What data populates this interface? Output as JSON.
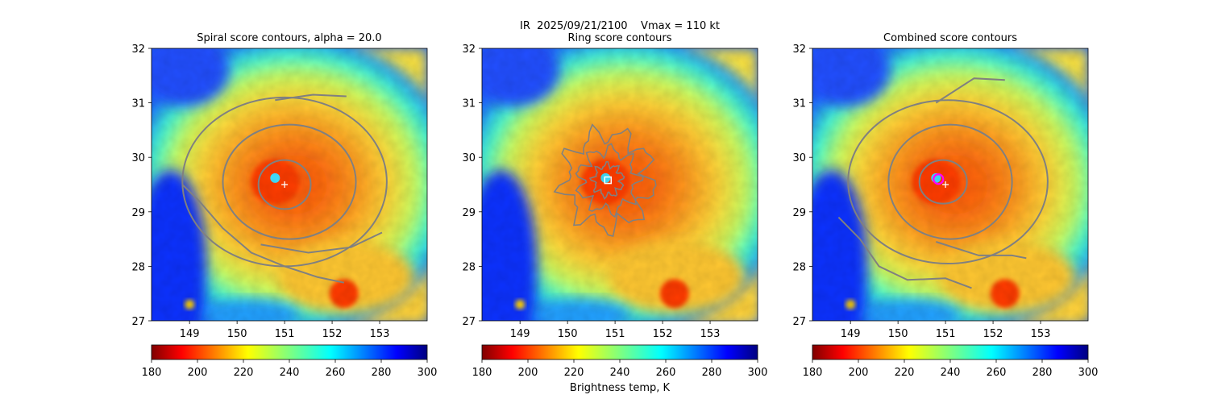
{
  "figure": {
    "suptitle": "IR  2025/09/21/2100    Vmax = 110 kt",
    "colorbar_label": "Brightness temp, K"
  },
  "chart_data": [
    {
      "type": "heatmap",
      "title": "Spiral score contours, alpha = 20.0",
      "xlim": [
        148.2,
        154.0
      ],
      "ylim": [
        27,
        32
      ],
      "x_ticks": [
        "149",
        "150",
        "151",
        "152",
        "153"
      ],
      "y_ticks": [
        "27",
        "28",
        "29",
        "30",
        "31",
        "32"
      ],
      "colorbar": {
        "ticks": [
          "180",
          "200",
          "220",
          "240",
          "260",
          "280",
          "300"
        ],
        "range": [
          180,
          300
        ],
        "colormap": "jet_r"
      },
      "markers": [
        {
          "type": "plus",
          "x": 151.0,
          "y": 29.5,
          "color": "#ffffff"
        }
      ],
      "contours": {
        "color": "#808080",
        "levels": [
          {
            "cx": 151.0,
            "cy": 29.5,
            "rx": 0.55,
            "ry": 0.45
          },
          {
            "cx": 151.1,
            "cy": 29.55,
            "rx": 1.4,
            "ry": 1.05
          },
          {
            "cx": 151.0,
            "cy": 29.55,
            "rx": 2.15,
            "ry": 1.55
          }
        ],
        "spiral_arms": [
          {
            "points": [
              [
                148.85,
                29.5
              ],
              [
                149.2,
                29.2
              ],
              [
                149.7,
                28.7
              ],
              [
                150.3,
                28.25
              ],
              [
                151.0,
                28.0
              ],
              [
                151.7,
                27.8
              ],
              [
                152.25,
                27.7
              ]
            ]
          },
          {
            "points": [
              [
                150.5,
                28.4
              ],
              [
                151.5,
                28.25
              ],
              [
                152.4,
                28.35
              ],
              [
                153.05,
                28.62
              ]
            ]
          },
          {
            "points": [
              [
                150.8,
                31.05
              ],
              [
                151.6,
                31.15
              ],
              [
                152.3,
                31.12
              ]
            ]
          }
        ]
      }
    },
    {
      "type": "heatmap",
      "title": "Ring score contours",
      "xlim": [
        148.2,
        154.0
      ],
      "ylim": [
        27,
        32
      ],
      "x_ticks": [
        "149",
        "150",
        "151",
        "152",
        "153"
      ],
      "y_ticks": [
        "27",
        "28",
        "29",
        "30",
        "31",
        "32"
      ],
      "colorbar": {
        "ticks": [
          "180",
          "200",
          "220",
          "240",
          "260",
          "280",
          "300"
        ],
        "range": [
          180,
          300
        ],
        "colormap": "jet_r"
      },
      "markers": [
        {
          "type": "square",
          "x": 150.85,
          "y": 29.58,
          "color": "#ffffff"
        }
      ],
      "contours": {
        "color": "#808080",
        "levels": [
          {
            "cx": 150.85,
            "cy": 29.58,
            "rx": 0.9,
            "ry": 0.85
          },
          {
            "cx": 150.85,
            "cy": 29.58,
            "rx": 0.6,
            "ry": 0.55
          },
          {
            "cx": 150.85,
            "cy": 29.58,
            "rx": 0.3,
            "ry": 0.28
          }
        ],
        "spiral_arms": []
      }
    },
    {
      "type": "heatmap",
      "title": "Combined score contours",
      "xlim": [
        148.2,
        154.0
      ],
      "ylim": [
        27,
        32
      ],
      "x_ticks": [
        "149",
        "150",
        "151",
        "152",
        "153"
      ],
      "y_ticks": [
        "27",
        "28",
        "29",
        "30",
        "31",
        "32"
      ],
      "colorbar": {
        "ticks": [
          "180",
          "200",
          "220",
          "240",
          "260",
          "280",
          "300"
        ],
        "range": [
          180,
          300
        ],
        "colormap": "jet_r"
      },
      "markers": [
        {
          "type": "plus",
          "x": 151.0,
          "y": 29.5,
          "color": "#ffffff"
        },
        {
          "type": "circle",
          "x": 150.85,
          "y": 29.6,
          "color": "#ff00ff"
        }
      ],
      "contours": {
        "color": "#808080",
        "levels": [
          {
            "cx": 150.95,
            "cy": 29.55,
            "rx": 0.5,
            "ry": 0.4
          },
          {
            "cx": 151.1,
            "cy": 29.55,
            "rx": 1.3,
            "ry": 1.05
          },
          {
            "cx": 151.05,
            "cy": 29.55,
            "rx": 2.1,
            "ry": 1.5
          }
        ],
        "spiral_arms": [
          {
            "points": [
              [
                148.75,
                28.9
              ],
              [
                149.2,
                28.5
              ],
              [
                149.6,
                28.0
              ],
              [
                150.2,
                27.75
              ],
              [
                151.0,
                27.78
              ],
              [
                151.55,
                27.6
              ]
            ]
          },
          {
            "points": [
              [
                150.8,
                28.45
              ],
              [
                151.7,
                28.2
              ],
              [
                152.4,
                28.2
              ],
              [
                152.7,
                28.15
              ]
            ]
          },
          {
            "points": [
              [
                150.8,
                31.0
              ],
              [
                151.6,
                31.45
              ],
              [
                152.25,
                31.42
              ]
            ]
          }
        ]
      }
    }
  ]
}
